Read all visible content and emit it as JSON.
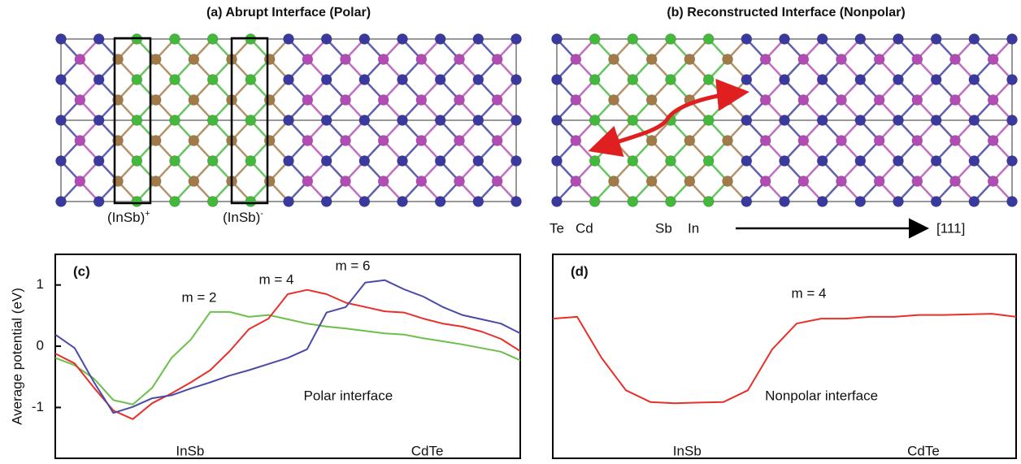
{
  "panels": {
    "a_title": "(a) Abrupt Interface (Polar)",
    "b_title": "(b) Reconstructed Interface (Nonpolar)",
    "box_labels": [
      {
        "text": "(InSb)",
        "sup": "+"
      },
      {
        "text": "(InSb)",
        "sup": "-"
      }
    ],
    "legend": [
      {
        "symbol": "Te",
        "color": "#3a3a9e"
      },
      {
        "symbol": "Cd",
        "color": "#b24cb4"
      },
      {
        "symbol": "Sb",
        "color": "#a27a48"
      },
      {
        "symbol": "In",
        "color": "#43b83c"
      }
    ],
    "direction": "[111]"
  },
  "chart_data": [
    {
      "type": "line",
      "panel_label": "(c)",
      "ylabel": "Average potential (eV)",
      "ylim": [
        -1.83,
        1.5
      ],
      "yticks": [
        -1,
        0,
        1
      ],
      "region_labels": [
        "InSb",
        "CdTe"
      ],
      "annotation": "Polar interface",
      "series": [
        {
          "name": "m = 2",
          "color": "#6cbf4a",
          "values": [
            -0.19,
            -0.31,
            -0.53,
            -0.88,
            -0.95,
            -0.68,
            -0.19,
            0.11,
            0.56,
            0.56,
            0.48,
            0.51,
            0.44,
            0.37,
            0.32,
            0.29,
            0.25,
            0.21,
            0.19,
            0.13,
            0.08,
            0.03,
            -0.03,
            -0.09,
            -0.23
          ]
        },
        {
          "name": "m = 4",
          "color": "#e8302a",
          "values": [
            -0.12,
            -0.28,
            -0.68,
            -1.05,
            -1.19,
            -0.93,
            -0.77,
            -0.59,
            -0.39,
            -0.08,
            0.28,
            0.45,
            0.85,
            0.92,
            0.85,
            0.71,
            0.64,
            0.57,
            0.55,
            0.45,
            0.37,
            0.32,
            0.24,
            0.12,
            -0.08
          ]
        },
        {
          "name": "m = 6",
          "color": "#4a4aa8",
          "values": [
            0.19,
            -0.03,
            -0.59,
            -1.09,
            -0.99,
            -0.85,
            -0.8,
            -0.69,
            -0.59,
            -0.48,
            -0.39,
            -0.29,
            -0.19,
            -0.05,
            0.55,
            0.64,
            1.04,
            1.08,
            0.93,
            0.81,
            0.64,
            0.51,
            0.44,
            0.37,
            0.21
          ]
        }
      ]
    },
    {
      "type": "line",
      "panel_label": "(d)",
      "ylim": [
        -1.83,
        1.5
      ],
      "region_labels": [
        "InSb",
        "CdTe"
      ],
      "annotation": "Nonpolar interface",
      "series": [
        {
          "name": "m = 4",
          "color": "#e8302a",
          "values": [
            0.45,
            0.48,
            -0.19,
            -0.72,
            -0.91,
            -0.93,
            -0.92,
            -0.91,
            -0.72,
            -0.05,
            0.37,
            0.45,
            0.45,
            0.48,
            0.48,
            0.51,
            0.51,
            0.52,
            0.53,
            0.48
          ]
        }
      ]
    }
  ]
}
